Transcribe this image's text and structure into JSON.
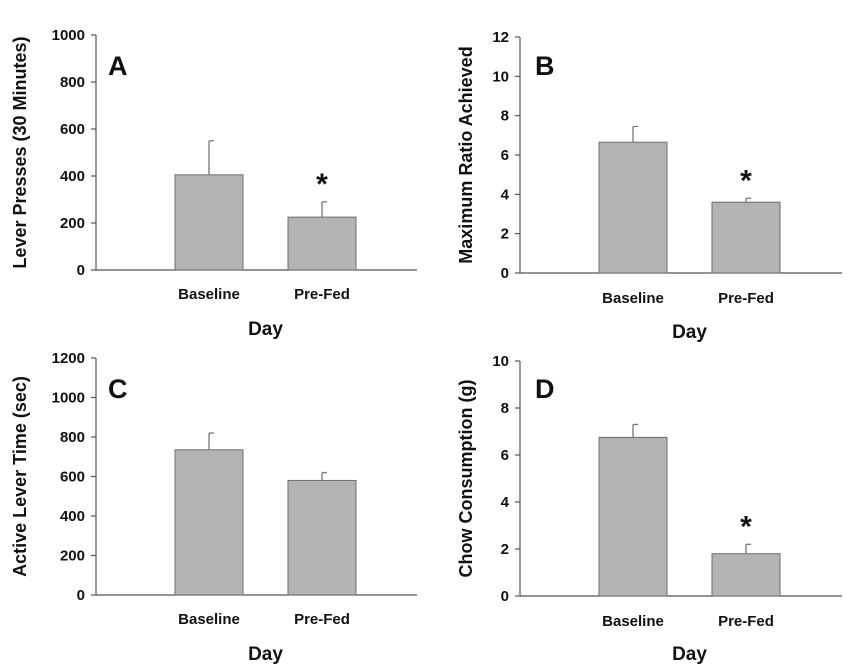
{
  "colors": {
    "bar_fill": "#b3b3b3",
    "bar_edge": "#6e6e6e",
    "axis": "#555555",
    "text": "#111111"
  },
  "chart_data": [
    {
      "panel": "A",
      "type": "bar",
      "title": "",
      "xlabel": "Day",
      "ylabel": "Lever Presses (30 Minutes)",
      "categories": [
        "Baseline",
        "Pre-Fed"
      ],
      "values": [
        405,
        225
      ],
      "errors": [
        145,
        65
      ],
      "significance": [
        "",
        "*"
      ],
      "ylim": [
        0,
        1000
      ],
      "yticks": [
        0,
        200,
        400,
        600,
        800,
        1000
      ],
      "grid": false
    },
    {
      "panel": "B",
      "type": "bar",
      "title": "",
      "xlabel": "Day",
      "ylabel": "Maximum Ratio Achieved",
      "categories": [
        "Baseline",
        "Pre-Fed"
      ],
      "values": [
        6.65,
        3.6
      ],
      "errors": [
        0.8,
        0.2
      ],
      "significance": [
        "",
        "*"
      ],
      "ylim": [
        0,
        12
      ],
      "yticks": [
        0,
        2,
        4,
        6,
        8,
        10,
        12
      ],
      "grid": false
    },
    {
      "panel": "C",
      "type": "bar",
      "title": "",
      "xlabel": "Day",
      "ylabel": "Active Lever Time (sec)",
      "categories": [
        "Baseline",
        "Pre-Fed"
      ],
      "values": [
        735,
        580
      ],
      "errors": [
        85,
        40
      ],
      "significance": [
        "",
        ""
      ],
      "ylim": [
        0,
        1200
      ],
      "yticks": [
        0,
        200,
        400,
        600,
        800,
        1000,
        1200
      ],
      "grid": false
    },
    {
      "panel": "D",
      "type": "bar",
      "title": "",
      "xlabel": "Day",
      "ylabel": "Chow Consumption (g)",
      "categories": [
        "Baseline",
        "Pre-Fed"
      ],
      "values": [
        6.75,
        1.8
      ],
      "errors": [
        0.55,
        0.4
      ],
      "significance": [
        "",
        "*"
      ],
      "ylim": [
        0,
        10
      ],
      "yticks": [
        0,
        2,
        4,
        6,
        8,
        10
      ],
      "grid": false
    }
  ]
}
